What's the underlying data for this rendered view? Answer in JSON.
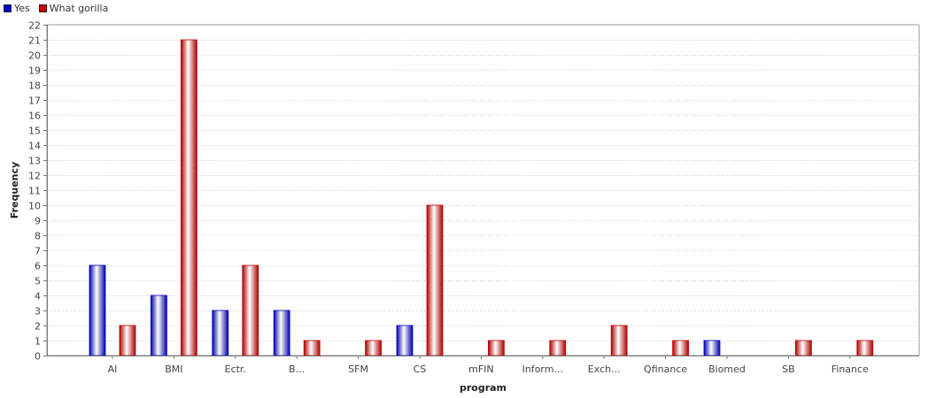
{
  "legend": {
    "items": [
      {
        "label": "Yes",
        "color": "#0000cc"
      },
      {
        "label": "What gorilla",
        "color": "#cc0000"
      }
    ]
  },
  "chart_data": {
    "type": "bar",
    "title": "",
    "xlabel": "program",
    "ylabel": "Frequency",
    "ylim": [
      0,
      22
    ],
    "yticks": [
      0,
      1,
      2,
      3,
      4,
      5,
      6,
      7,
      8,
      9,
      10,
      11,
      12,
      13,
      14,
      15,
      16,
      17,
      18,
      19,
      20,
      21,
      22
    ],
    "grid": true,
    "legend_position": "top-left",
    "categories": [
      "AI",
      "BMI",
      "Ectr.",
      "B...",
      "SFM",
      "CS",
      "mFIN",
      "Inform...",
      "Exch...",
      "Qfinance",
      "Biomed",
      "SB",
      "Finance"
    ],
    "series": [
      {
        "name": "Yes",
        "color": "#0000cc",
        "values": [
          6,
          4,
          3,
          3,
          0,
          2,
          0,
          0,
          0,
          0,
          1,
          0,
          0
        ]
      },
      {
        "name": "What gorilla",
        "color": "#cc0000",
        "values": [
          2,
          21,
          6,
          1,
          1,
          10,
          1,
          1,
          2,
          1,
          0,
          1,
          1
        ]
      }
    ]
  }
}
